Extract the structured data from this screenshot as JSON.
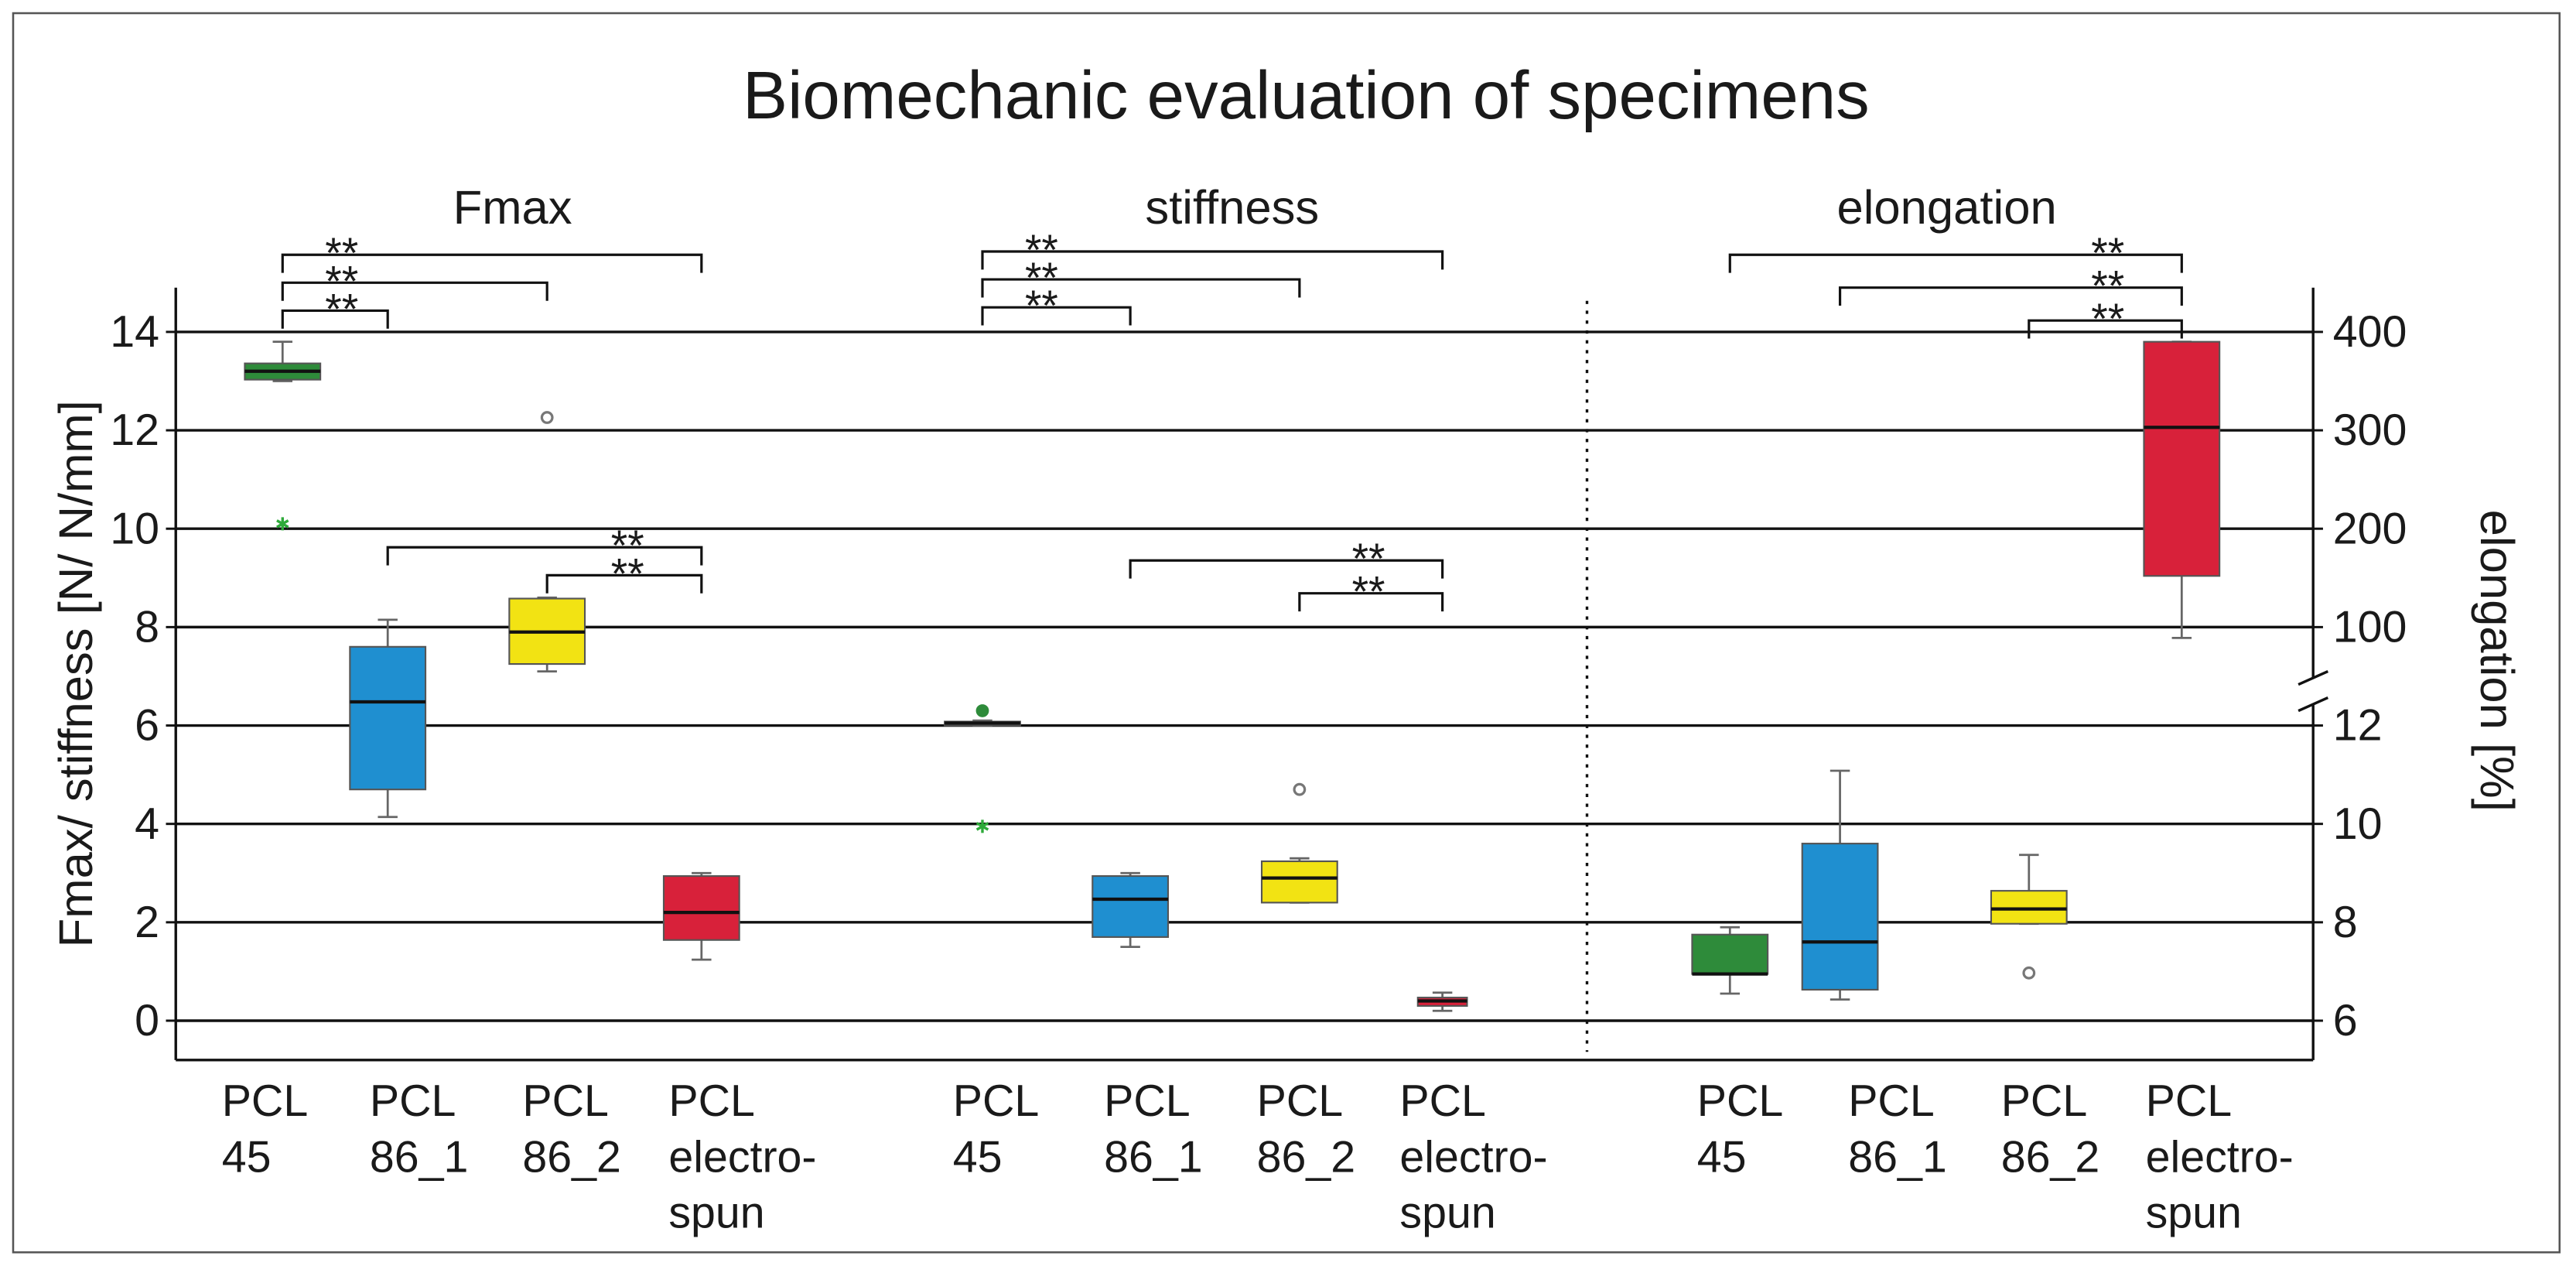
{
  "chart_data": {
    "type": "box",
    "title": "Biomechanic evaluation of specimens",
    "ylabel": "Fmax/ stiffness [N/ N/mm]",
    "y2label": "elongation [%]",
    "ylim": [
      -0.8,
      14.9
    ],
    "yticks": [
      0,
      2,
      4,
      6,
      8,
      10,
      12,
      14
    ],
    "grid": true,
    "y2_segments": [
      {
        "ylim": [
          -0.8,
          6.7
        ],
        "y2lim": [
          5.2,
          12.7
        ],
        "y2ticks": [
          6,
          8,
          10,
          12
        ]
      },
      {
        "ylim": [
          6.7,
          14.9
        ],
        "y2lim": [
          35,
          445
        ],
        "y2ticks": [
          100,
          200,
          300,
          400
        ]
      }
    ],
    "colors": [
      "#2e8b3a",
      "#1f8fd0",
      "#f2e313",
      "#d8213a"
    ],
    "panels": [
      {
        "title": "Fmax",
        "axis": "y",
        "categories": [
          [
            "PCL",
            "45"
          ],
          [
            "PCL",
            "86_1"
          ],
          [
            "PCL",
            "86_2"
          ],
          [
            "PCL",
            "electro-",
            "spun"
          ]
        ],
        "boxes": [
          {
            "whislo": 13.0,
            "q1": 13.03,
            "med": 13.2,
            "q3": 13.36,
            "whishi": 13.8,
            "extremes": [
              10.1
            ],
            "extreme_color": "#2eaa3a"
          },
          {
            "whislo": 4.14,
            "q1": 4.7,
            "med": 6.48,
            "q3": 7.6,
            "whishi": 8.15
          },
          {
            "whislo": 7.1,
            "q1": 7.25,
            "med": 7.9,
            "q3": 8.58,
            "whishi": 8.6,
            "outliers": [
              12.26
            ],
            "outlier_color": "#777777"
          },
          {
            "whislo": 1.24,
            "q1": 1.64,
            "med": 2.2,
            "q3": 2.94,
            "whishi": 3.0
          }
        ],
        "comparisons": [
          {
            "pair": [
              0,
              1
            ],
            "label": "**"
          },
          {
            "pair": [
              0,
              2
            ],
            "label": "**"
          },
          {
            "pair": [
              0,
              3
            ],
            "label": "**"
          },
          {
            "pair": [
              1,
              3
            ],
            "label": "**"
          },
          {
            "pair": [
              2,
              3
            ],
            "label": "**"
          }
        ]
      },
      {
        "title": "stiffness",
        "axis": "y",
        "categories": [
          [
            "PCL",
            "45"
          ],
          [
            "PCL",
            "86_1"
          ],
          [
            "PCL",
            "86_2"
          ],
          [
            "PCL",
            "electro-",
            "spun"
          ]
        ],
        "boxes": [
          {
            "whislo": 6.0,
            "q1": 6.0,
            "med": 6.05,
            "q3": 6.08,
            "whishi": 6.1,
            "outliers": [
              6.3
            ],
            "outlier_color": "#2e8b3a",
            "extremes": [
              3.95
            ],
            "extreme_color": "#2eaa3a"
          },
          {
            "whislo": 1.5,
            "q1": 1.7,
            "med": 2.47,
            "q3": 2.94,
            "whishi": 3.0
          },
          {
            "whislo": 2.4,
            "q1": 2.4,
            "med": 2.9,
            "q3": 3.24,
            "whishi": 3.3,
            "outliers": [
              4.7
            ],
            "outlier_color": "#777777"
          },
          {
            "whislo": 0.2,
            "q1": 0.3,
            "med": 0.4,
            "q3": 0.47,
            "whishi": 0.57
          }
        ],
        "comparisons": [
          {
            "pair": [
              0,
              1
            ],
            "label": "**"
          },
          {
            "pair": [
              0,
              2
            ],
            "label": "**"
          },
          {
            "pair": [
              0,
              3
            ],
            "label": "**"
          },
          {
            "pair": [
              1,
              3
            ],
            "label": "**"
          },
          {
            "pair": [
              2,
              3
            ],
            "label": "**"
          }
        ]
      },
      {
        "title": "elongation",
        "axis": "y2",
        "categories": [
          [
            "PCL",
            "45"
          ],
          [
            "PCL",
            "86_1"
          ],
          [
            "PCL",
            "86_2"
          ],
          [
            "PCL",
            "electro-",
            "spun"
          ]
        ],
        "boxes": [
          {
            "whislo": 6.55,
            "q1": 6.95,
            "med": 6.95,
            "q3": 7.75,
            "whishi": 7.9
          },
          {
            "whislo": 6.43,
            "q1": 6.63,
            "med": 7.6,
            "q3": 9.6,
            "whishi": 11.08
          },
          {
            "whislo": 7.97,
            "q1": 7.97,
            "med": 8.27,
            "q3": 8.64,
            "whishi": 9.37,
            "outliers": [
              6.97
            ],
            "outlier_color": "#777777"
          },
          {
            "whislo": 89,
            "q1": 152,
            "med": 303,
            "q3": 390,
            "whishi": 390
          }
        ],
        "comparisons": [
          {
            "pair": [
              0,
              3
            ],
            "label": "**"
          },
          {
            "pair": [
              1,
              3
            ],
            "label": "**"
          },
          {
            "pair": [
              2,
              3
            ],
            "label": "**"
          }
        ]
      }
    ]
  }
}
